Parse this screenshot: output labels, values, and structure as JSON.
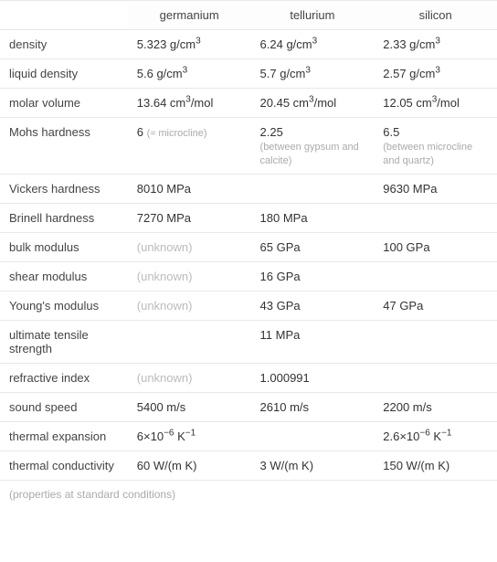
{
  "columns": [
    "",
    "germanium",
    "tellurium",
    "silicon"
  ],
  "rows": [
    {
      "prop": "density",
      "vals": [
        {
          "main": "5.323 g/cm",
          "sup": "3"
        },
        {
          "main": "6.24 g/cm",
          "sup": "3"
        },
        {
          "main": "2.33 g/cm",
          "sup": "3"
        }
      ]
    },
    {
      "prop": "liquid density",
      "vals": [
        {
          "main": "5.6 g/cm",
          "sup": "3"
        },
        {
          "main": "5.7 g/cm",
          "sup": "3"
        },
        {
          "main": "2.57 g/cm",
          "sup": "3"
        }
      ]
    },
    {
      "prop": "molar volume",
      "vals": [
        {
          "main": "13.64 cm",
          "sup": "3",
          "after": "/mol"
        },
        {
          "main": "20.45 cm",
          "sup": "3",
          "after": "/mol"
        },
        {
          "main": "12.05 cm",
          "sup": "3",
          "after": "/mol"
        }
      ]
    },
    {
      "prop": "Mohs hardness",
      "vals": [
        {
          "main": "6 ",
          "note": "(≈ microcline)"
        },
        {
          "main": "2.25",
          "br_note": "(between gypsum and calcite)"
        },
        {
          "main": "6.5",
          "br_note": "(between microcline and quartz)"
        }
      ]
    },
    {
      "prop": "Vickers hardness",
      "vals": [
        {
          "main": "8010 MPa"
        },
        {
          "main": ""
        },
        {
          "main": "9630 MPa"
        }
      ]
    },
    {
      "prop": "Brinell hardness",
      "vals": [
        {
          "main": "7270 MPa"
        },
        {
          "main": "180 MPa"
        },
        {
          "main": ""
        }
      ]
    },
    {
      "prop": "bulk modulus",
      "vals": [
        {
          "main": "(unknown)",
          "unknown": true
        },
        {
          "main": "65 GPa"
        },
        {
          "main": "100 GPa"
        }
      ]
    },
    {
      "prop": "shear modulus",
      "vals": [
        {
          "main": "(unknown)",
          "unknown": true
        },
        {
          "main": "16 GPa"
        },
        {
          "main": ""
        }
      ]
    },
    {
      "prop": "Young's modulus",
      "vals": [
        {
          "main": "(unknown)",
          "unknown": true
        },
        {
          "main": "43 GPa"
        },
        {
          "main": "47 GPa"
        }
      ]
    },
    {
      "prop": "ultimate tensile strength",
      "vals": [
        {
          "main": ""
        },
        {
          "main": "11 MPa"
        },
        {
          "main": ""
        }
      ]
    },
    {
      "prop": "refractive index",
      "vals": [
        {
          "main": "(unknown)",
          "unknown": true
        },
        {
          "main": "1.000991"
        },
        {
          "main": ""
        }
      ]
    },
    {
      "prop": "sound speed",
      "vals": [
        {
          "main": "5400 m/s"
        },
        {
          "main": "2610 m/s"
        },
        {
          "main": "2200 m/s"
        }
      ]
    },
    {
      "prop": "thermal expansion",
      "vals": [
        {
          "pre": "6×10",
          "sup": "−6",
          "after": " K",
          "sup2": "−1"
        },
        {
          "main": ""
        },
        {
          "pre": "2.6×10",
          "sup": "−6",
          "after": " K",
          "sup2": "−1"
        }
      ]
    },
    {
      "prop": "thermal conductivity",
      "vals": [
        {
          "main": "60 W/(m K)"
        },
        {
          "main": "3 W/(m K)"
        },
        {
          "main": "150 W/(m K)"
        }
      ]
    }
  ],
  "footer": "(properties at standard conditions)",
  "colors": {
    "border": "#e8e8e8",
    "unknown": "#bbbbbb",
    "note": "#aaaaaa",
    "text": "#333333"
  }
}
